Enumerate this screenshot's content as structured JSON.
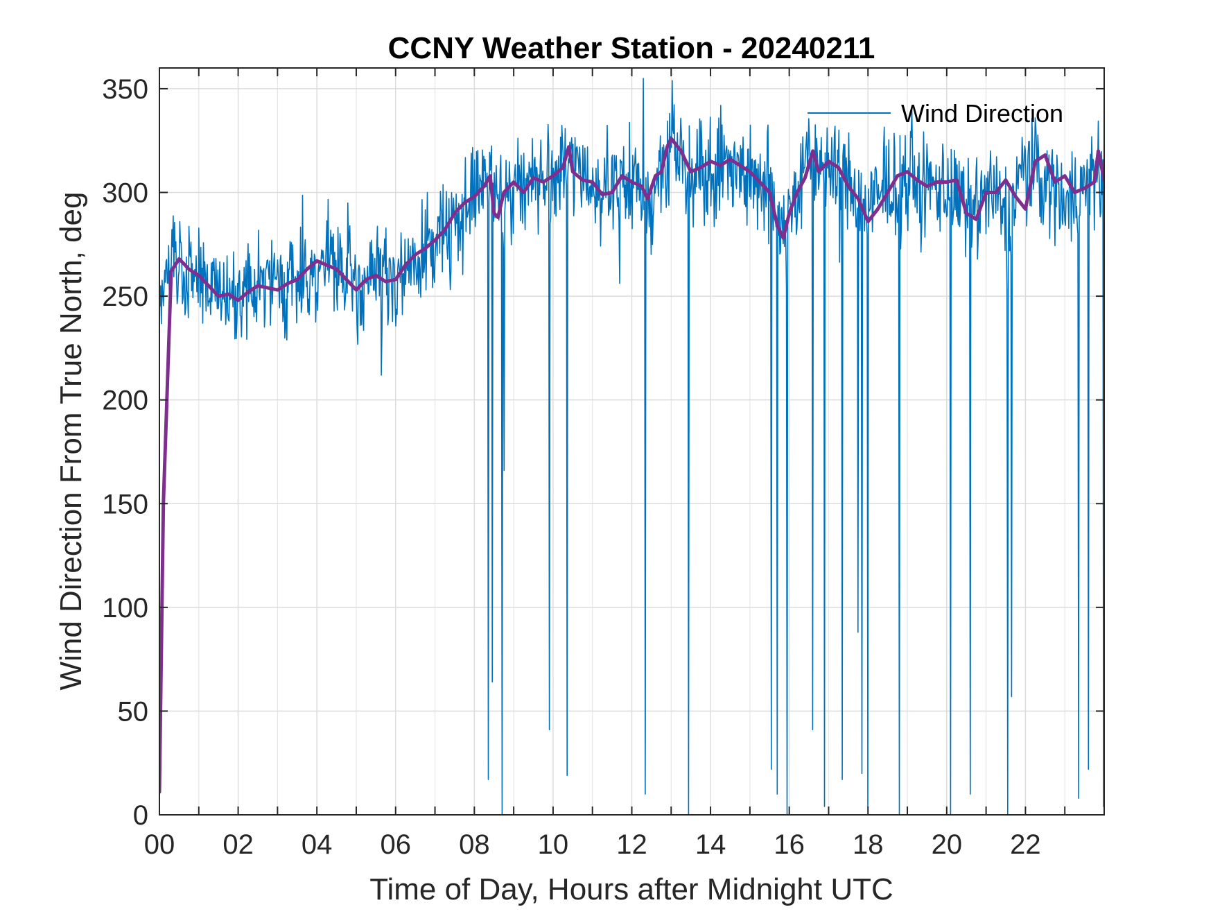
{
  "chart_data": {
    "type": "line",
    "title": "CCNY Weather Station - 20240211",
    "xlabel": "Time of Day, Hours after Midnight UTC",
    "ylabel": "Wind Direction From True North, deg",
    "xlim": [
      0,
      24
    ],
    "ylim": [
      0,
      360
    ],
    "xticks": [
      0,
      2,
      4,
      6,
      8,
      10,
      12,
      14,
      16,
      18,
      20,
      22
    ],
    "xtick_labels": [
      "00",
      "02",
      "04",
      "06",
      "08",
      "10",
      "12",
      "14",
      "16",
      "18",
      "20",
      "22"
    ],
    "yticks": [
      0,
      50,
      100,
      150,
      200,
      250,
      300,
      350
    ],
    "ytick_labels": [
      "0",
      "50",
      "100",
      "150",
      "200",
      "250",
      "300",
      "350"
    ],
    "grid": true,
    "legend_position": "top-right",
    "series": [
      {
        "name": "Wind Direction",
        "color": "#0072BD",
        "style": "thin-noisy",
        "trend_x": [
          0,
          0.15,
          0.5,
          1.0,
          1.5,
          2.0,
          2.5,
          3.0,
          3.5,
          4.0,
          4.5,
          5.0,
          5.5,
          6.0,
          6.5,
          7.0,
          7.5,
          8.0,
          8.4,
          8.7,
          9.0,
          9.5,
          10.0,
          10.4,
          11.0,
          11.5,
          12.0,
          12.5,
          13.0,
          13.5,
          14.0,
          14.5,
          15.0,
          15.5,
          15.8,
          16.2,
          16.6,
          17.0,
          17.5,
          18.0,
          18.5,
          19.0,
          19.5,
          20.0,
          20.5,
          21.0,
          21.5,
          22.0,
          22.5,
          23.0,
          23.5,
          23.95
        ],
        "trend_y": [
          250,
          262,
          266,
          260,
          250,
          250,
          255,
          254,
          257,
          265,
          263,
          253,
          260,
          258,
          268,
          275,
          288,
          298,
          305,
          292,
          305,
          308,
          307,
          315,
          305,
          298,
          305,
          298,
          323,
          310,
          313,
          315,
          310,
          300,
          282,
          300,
          318,
          312,
          305,
          290,
          303,
          305,
          302,
          305,
          288,
          300,
          290,
          315,
          305,
          298,
          302,
          310
        ],
        "noise_amplitude": 22,
        "dropouts": [
          {
            "x": 8.35,
            "y": 17
          },
          {
            "x": 8.45,
            "y": 64
          },
          {
            "x": 8.7,
            "y": 0
          },
          {
            "x": 8.75,
            "y": 166
          },
          {
            "x": 9.9,
            "y": 41
          },
          {
            "x": 10.35,
            "y": 19
          },
          {
            "x": 12.35,
            "y": 10
          },
          {
            "x": 13.45,
            "y": 0
          },
          {
            "x": 15.55,
            "y": 22
          },
          {
            "x": 15.7,
            "y": 10
          },
          {
            "x": 15.95,
            "y": 0
          },
          {
            "x": 16.6,
            "y": 41
          },
          {
            "x": 16.9,
            "y": 4
          },
          {
            "x": 17.35,
            "y": 17
          },
          {
            "x": 17.75,
            "y": 88
          },
          {
            "x": 17.85,
            "y": 20
          },
          {
            "x": 18.0,
            "y": 4
          },
          {
            "x": 18.8,
            "y": 0
          },
          {
            "x": 20.1,
            "y": 0
          },
          {
            "x": 20.6,
            "y": 10
          },
          {
            "x": 21.55,
            "y": 0
          },
          {
            "x": 21.65,
            "y": 57
          },
          {
            "x": 23.35,
            "y": 8
          },
          {
            "x": 23.6,
            "y": 22
          },
          {
            "x": 23.98,
            "y": 4
          }
        ]
      },
      {
        "name": "",
        "color": "#7E2F8E",
        "style": "thick-smooth",
        "x": [
          0,
          0.1,
          0.3,
          0.5,
          0.75,
          1.0,
          1.25,
          1.5,
          1.75,
          2.0,
          2.25,
          2.5,
          2.75,
          3.0,
          3.25,
          3.5,
          3.75,
          4.0,
          4.25,
          4.5,
          4.75,
          5.0,
          5.25,
          5.5,
          5.75,
          6.0,
          6.25,
          6.5,
          6.75,
          7.0,
          7.25,
          7.5,
          7.75,
          8.0,
          8.25,
          8.4,
          8.5,
          8.6,
          8.75,
          9.0,
          9.25,
          9.5,
          9.75,
          10.0,
          10.25,
          10.4,
          10.5,
          10.75,
          11.0,
          11.25,
          11.5,
          11.75,
          12.0,
          12.25,
          12.4,
          12.6,
          12.75,
          12.9,
          13.0,
          13.25,
          13.5,
          13.75,
          14.0,
          14.25,
          14.5,
          14.75,
          15.0,
          15.25,
          15.5,
          15.7,
          15.85,
          16.0,
          16.2,
          16.4,
          16.6,
          16.75,
          17.0,
          17.25,
          17.5,
          17.75,
          18.0,
          18.25,
          18.5,
          18.75,
          19.0,
          19.25,
          19.5,
          19.75,
          20.0,
          20.25,
          20.5,
          20.75,
          21.0,
          21.25,
          21.5,
          21.75,
          22.0,
          22.25,
          22.5,
          22.75,
          23.0,
          23.25,
          23.5,
          23.75,
          23.85,
          24.0
        ],
        "y": [
          11,
          150,
          262,
          268,
          263,
          260,
          255,
          250,
          251,
          248,
          252,
          255,
          254,
          253,
          256,
          258,
          263,
          267,
          265,
          263,
          258,
          253,
          258,
          260,
          257,
          258,
          265,
          270,
          273,
          277,
          282,
          290,
          295,
          298,
          303,
          308,
          290,
          288,
          300,
          305,
          300,
          307,
          305,
          308,
          312,
          322,
          310,
          306,
          305,
          299,
          300,
          308,
          305,
          303,
          297,
          308,
          310,
          322,
          326,
          320,
          310,
          312,
          315,
          313,
          316,
          313,
          310,
          305,
          300,
          284,
          278,
          290,
          300,
          307,
          320,
          310,
          315,
          312,
          303,
          297,
          286,
          292,
          300,
          308,
          310,
          306,
          303,
          305,
          305,
          306,
          290,
          287,
          300,
          300,
          306,
          298,
          292,
          315,
          318,
          305,
          308,
          300,
          302,
          305,
          320,
          306
        ]
      }
    ]
  }
}
